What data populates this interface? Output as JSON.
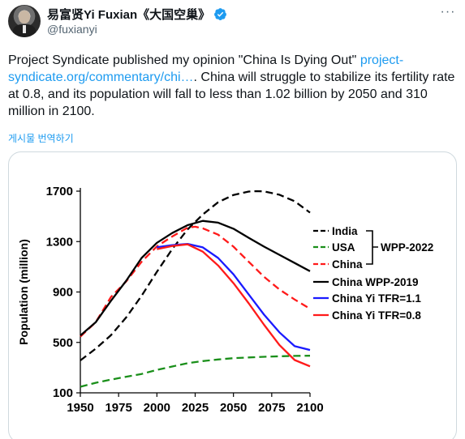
{
  "author": {
    "display_name": "易富贤Yi Fuxian《大国空巢》",
    "handle": "@fuxianyi",
    "verified": true,
    "avatar": "author-photo"
  },
  "icons": {
    "verified": "verified-badge-icon",
    "more": "more-options-icon"
  },
  "tweet": {
    "text_before": "Project Syndicate published my opinion \"China Is Dying Out\" ",
    "link_text": "project-syndicate.org/commentary/chi…",
    "text_after": ". China will struggle to stabilize its fertility rate at 0.8, and its population will fall to less than 1.02 billion by 2050 and 310 million in 2100.",
    "translate_label": "게시물 번역하기"
  },
  "colors": {
    "accent": "#1d9bf0",
    "verified": "#1d9bf0"
  },
  "chart_data": {
    "type": "line",
    "title": "",
    "xlabel": "",
    "ylabel": "Population (million)",
    "xlim": [
      1950,
      2100
    ],
    "ylim": [
      100,
      1700
    ],
    "x_ticks": [
      "1950",
      "1975",
      "2000",
      "2025",
      "2050",
      "2075",
      "2100"
    ],
    "y_ticks": [
      "100",
      "500",
      "900",
      "1300",
      "1700"
    ],
    "bracket_label": "WPP-2022",
    "series": [
      {
        "name": "India",
        "color": "#000000",
        "dash": true,
        "group": "WPP-2022",
        "points": [
          [
            1950,
            357
          ],
          [
            1960,
            450
          ],
          [
            1970,
            557
          ],
          [
            1980,
            699
          ],
          [
            1990,
            870
          ],
          [
            2000,
            1060
          ],
          [
            2010,
            1240
          ],
          [
            2020,
            1396
          ],
          [
            2030,
            1515
          ],
          [
            2040,
            1612
          ],
          [
            2050,
            1670
          ],
          [
            2060,
            1697
          ],
          [
            2065,
            1700
          ],
          [
            2070,
            1698
          ],
          [
            2080,
            1672
          ],
          [
            2090,
            1620
          ],
          [
            2100,
            1530
          ]
        ]
      },
      {
        "name": "USA",
        "color": "#1a8f1a",
        "dash": true,
        "group": "WPP-2022",
        "points": [
          [
            1950,
            148
          ],
          [
            1960,
            180
          ],
          [
            1970,
            205
          ],
          [
            1980,
            228
          ],
          [
            1990,
            250
          ],
          [
            2000,
            282
          ],
          [
            2010,
            309
          ],
          [
            2020,
            335
          ],
          [
            2030,
            352
          ],
          [
            2040,
            365
          ],
          [
            2050,
            375
          ],
          [
            2060,
            381
          ],
          [
            2070,
            386
          ],
          [
            2080,
            390
          ],
          [
            2090,
            393
          ],
          [
            2100,
            394
          ]
        ]
      },
      {
        "name": "China",
        "color": "#ff1a1a",
        "dash": true,
        "group": "WPP-2022",
        "points": [
          [
            1950,
            546
          ],
          [
            1960,
            660
          ],
          [
            1970,
            860
          ],
          [
            1980,
            985
          ],
          [
            1990,
            1140
          ],
          [
            2000,
            1262
          ],
          [
            2010,
            1340
          ],
          [
            2020,
            1410
          ],
          [
            2025,
            1418
          ],
          [
            2030,
            1405
          ],
          [
            2040,
            1355
          ],
          [
            2050,
            1260
          ],
          [
            2060,
            1140
          ],
          [
            2070,
            1020
          ],
          [
            2080,
            920
          ],
          [
            2090,
            840
          ],
          [
            2100,
            767
          ]
        ]
      },
      {
        "name": "China WPP-2019",
        "color": "#000000",
        "dash": false,
        "points": [
          [
            1950,
            554
          ],
          [
            1960,
            660
          ],
          [
            1970,
            830
          ],
          [
            1980,
            990
          ],
          [
            1990,
            1170
          ],
          [
            2000,
            1290
          ],
          [
            2010,
            1368
          ],
          [
            2020,
            1430
          ],
          [
            2030,
            1464
          ],
          [
            2040,
            1450
          ],
          [
            2050,
            1402
          ],
          [
            2060,
            1330
          ],
          [
            2070,
            1260
          ],
          [
            2080,
            1195
          ],
          [
            2090,
            1130
          ],
          [
            2100,
            1065
          ]
        ]
      },
      {
        "name": "China Yi  TFR=1.1",
        "color": "#1a1aff",
        "dash": false,
        "points": [
          [
            2000,
            1255
          ],
          [
            2010,
            1272
          ],
          [
            2020,
            1282
          ],
          [
            2030,
            1254
          ],
          [
            2040,
            1170
          ],
          [
            2050,
            1040
          ],
          [
            2060,
            880
          ],
          [
            2070,
            720
          ],
          [
            2080,
            580
          ],
          [
            2090,
            470
          ],
          [
            2100,
            440
          ]
        ]
      },
      {
        "name": "China Yi TFR=0.8",
        "color": "#ff1a1a",
        "dash": false,
        "points": [
          [
            2000,
            1240
          ],
          [
            2010,
            1265
          ],
          [
            2020,
            1278
          ],
          [
            2030,
            1220
          ],
          [
            2040,
            1110
          ],
          [
            2050,
            970
          ],
          [
            2060,
            810
          ],
          [
            2070,
            640
          ],
          [
            2080,
            480
          ],
          [
            2090,
            360
          ],
          [
            2100,
            310
          ]
        ]
      }
    ]
  }
}
